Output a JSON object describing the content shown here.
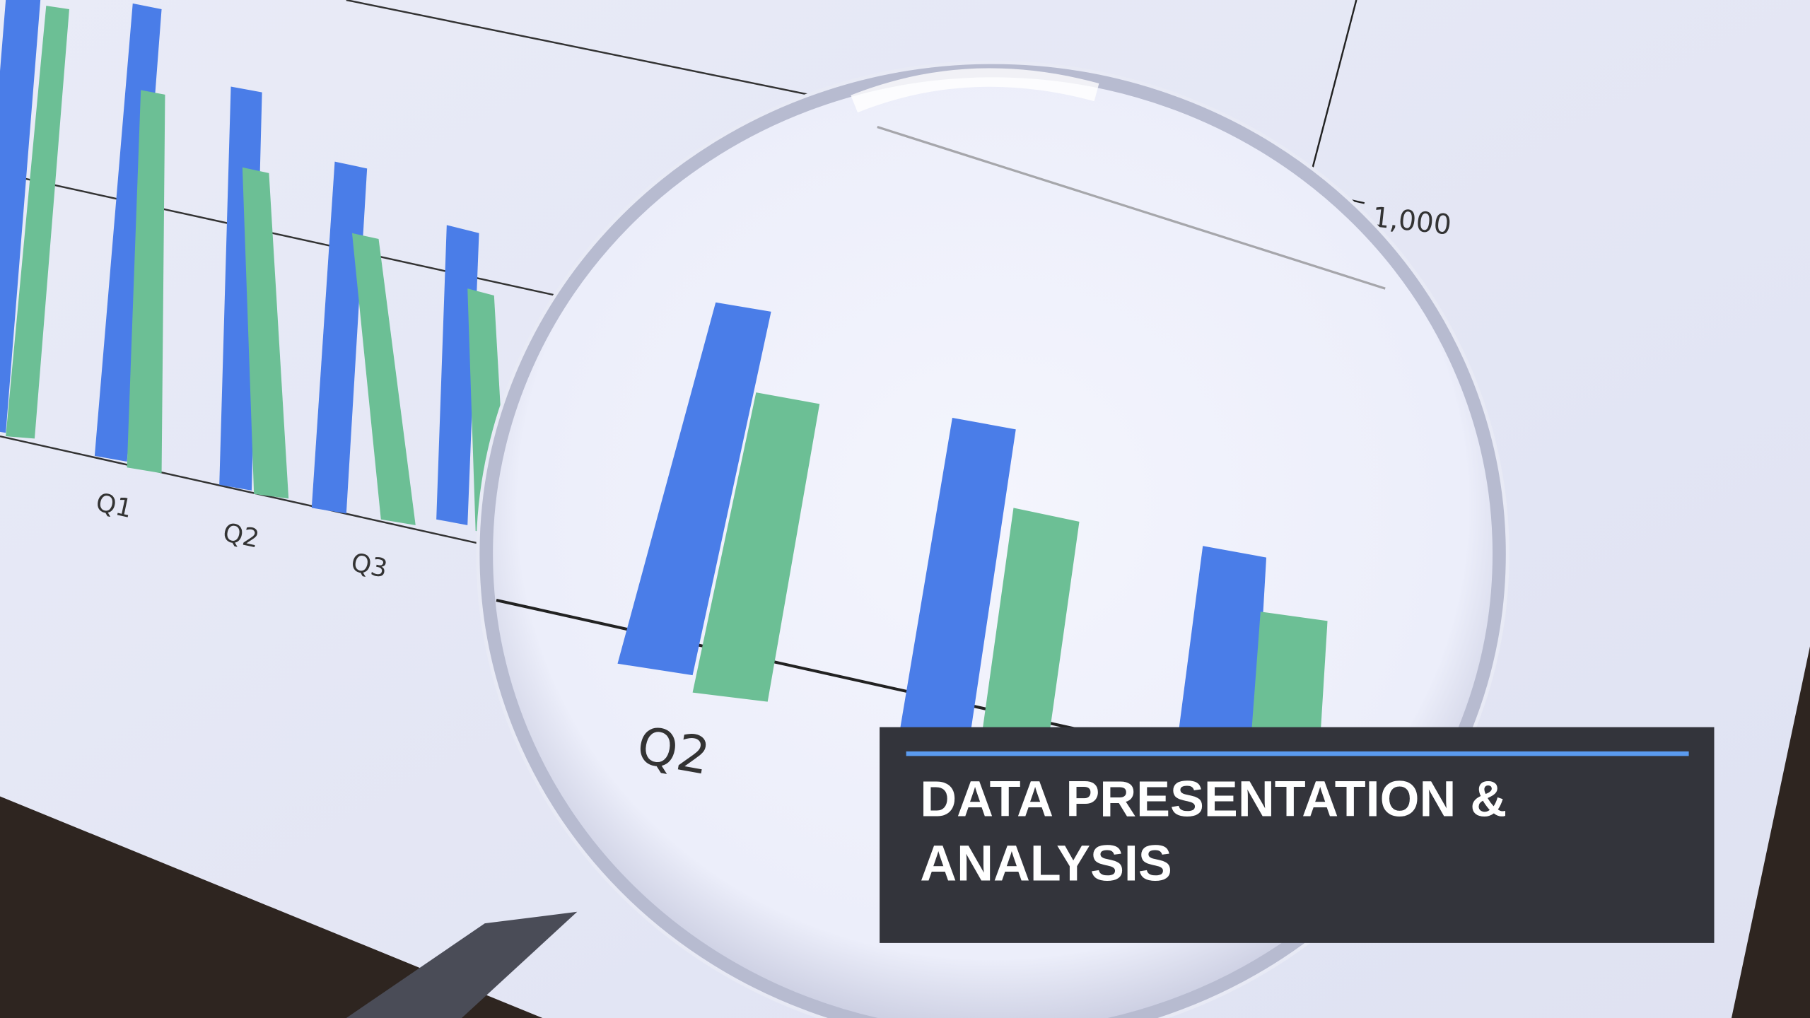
{
  "banner": {
    "title_lines": [
      "DATA PRESENTATION &",
      "ANALYSIS"
    ]
  },
  "photo_labels": [
    "Q1",
    "Q2",
    "Q3",
    "1,000",
    "Q2"
  ]
}
